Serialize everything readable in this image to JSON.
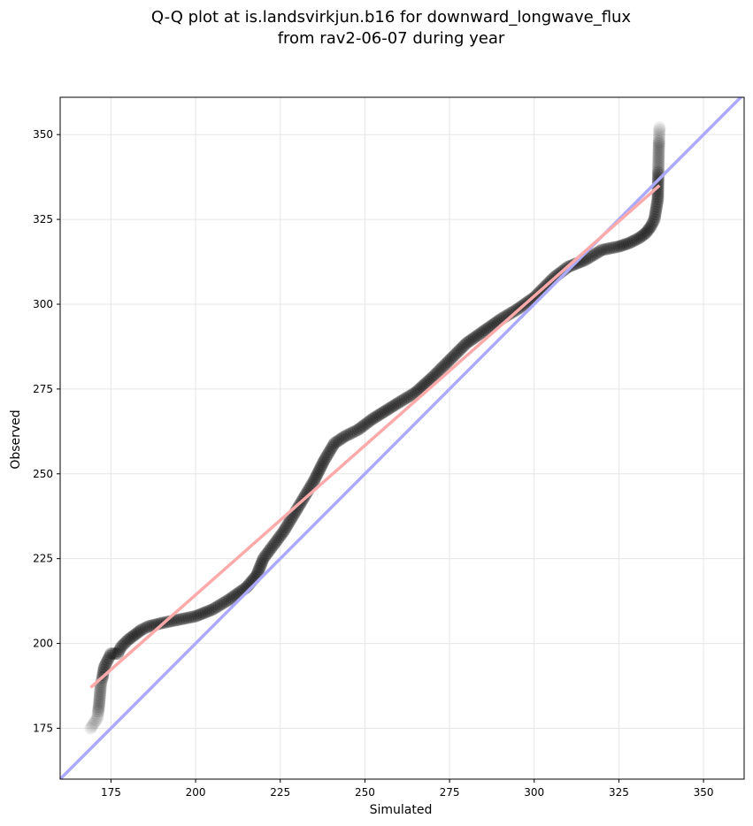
{
  "chart_data": {
    "type": "scatter",
    "title_line1": "Q-Q plot at is.landsvirkjun.b16 for downward_longwave_flux",
    "title_line2": "from rav2-06-07 during year",
    "xlabel": "Simulated",
    "ylabel": "Observed",
    "xlim": [
      160,
      362
    ],
    "ylim": [
      160,
      361
    ],
    "xticks": [
      175,
      200,
      225,
      250,
      275,
      300,
      325,
      350
    ],
    "yticks": [
      175,
      200,
      225,
      250,
      275,
      300,
      325,
      350
    ],
    "grid": true,
    "colors": {
      "points": "#000000",
      "identity_line": "#aaaaff",
      "fit_line": "#ffaaaa",
      "grid": "#e6e6e6"
    },
    "identity_line": {
      "from": [
        160,
        160
      ],
      "to": [
        362,
        362
      ]
    },
    "fit_line": {
      "from": [
        169,
        187
      ],
      "to": [
        337,
        335
      ]
    },
    "quantile_anchors": {
      "simulated": [
        169,
        171,
        171.5,
        172,
        172.5,
        173,
        174,
        175,
        177,
        178,
        180,
        182,
        184,
        186,
        190,
        195,
        200,
        205,
        210,
        215,
        218,
        220,
        223,
        226,
        229,
        232,
        235,
        238,
        241,
        244,
        248,
        252,
        256,
        260,
        265,
        270,
        275,
        280,
        285,
        290,
        295,
        300,
        303,
        306,
        310,
        315,
        320,
        325,
        328,
        331,
        333,
        334.5,
        335.5,
        336,
        336.5,
        336.8,
        337
      ],
      "observed": [
        175,
        178,
        182,
        188,
        190,
        193,
        195,
        197,
        197,
        199,
        201,
        202.5,
        204,
        205,
        206,
        207,
        208,
        210,
        213,
        216.5,
        220,
        225,
        229,
        233,
        238,
        243,
        248,
        254,
        259,
        261,
        263,
        266,
        268.5,
        271,
        274,
        278.5,
        283.5,
        288.5,
        292,
        295.5,
        298.5,
        302,
        305,
        308,
        311,
        313,
        316,
        317,
        318,
        319.5,
        321,
        323,
        325,
        328,
        331,
        346,
        352
      ]
    }
  }
}
